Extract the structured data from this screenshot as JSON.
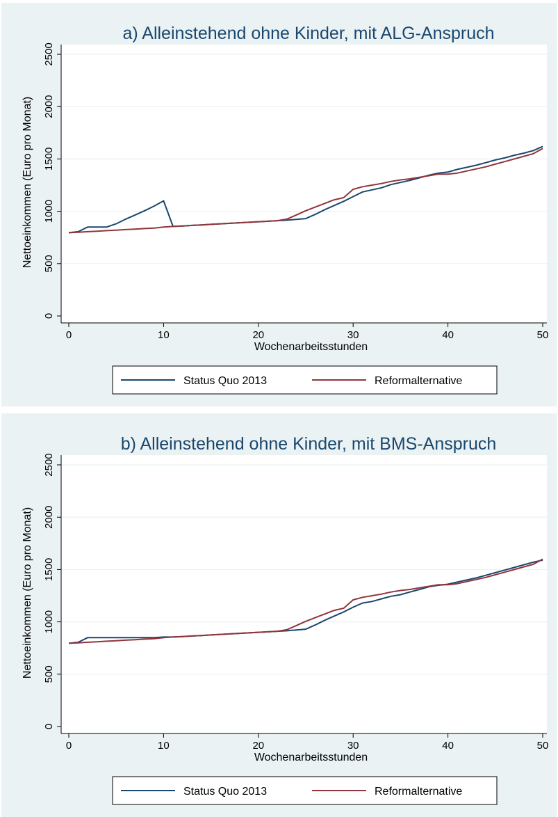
{
  "chart_data": [
    {
      "type": "line",
      "title": "a) Alleinstehend ohne Kinder, mit ALG-Anspruch",
      "xlabel": "Wochenarbeitsstunden",
      "ylabel": "Nettoeinkommen (Euro pro Monat)",
      "xlim": [
        0,
        50
      ],
      "ylim": [
        0,
        2500
      ],
      "xticks": [
        0,
        10,
        20,
        30,
        40,
        50
      ],
      "yticks": [
        0,
        500,
        1000,
        1500,
        2000,
        2500
      ],
      "legend_position": "bottom",
      "series": [
        {
          "name": "Status Quo 2013",
          "color": "#1a476f",
          "x": [
            0,
            1,
            2,
            3,
            4,
            5,
            6,
            7,
            8,
            9,
            10,
            11,
            12,
            13,
            14,
            15,
            16,
            17,
            18,
            19,
            20,
            21,
            22,
            23,
            24,
            25,
            26,
            27,
            28,
            29,
            30,
            31,
            32,
            33,
            34,
            35,
            36,
            37,
            38,
            39,
            40,
            41,
            42,
            43,
            44,
            45,
            46,
            47,
            48,
            49,
            50
          ],
          "y": [
            795,
            805,
            850,
            850,
            850,
            880,
            925,
            965,
            1005,
            1050,
            1100,
            855,
            860,
            865,
            870,
            875,
            880,
            885,
            890,
            895,
            900,
            905,
            910,
            915,
            922,
            930,
            970,
            1015,
            1055,
            1095,
            1140,
            1185,
            1205,
            1225,
            1255,
            1275,
            1295,
            1320,
            1345,
            1365,
            1375,
            1400,
            1420,
            1440,
            1465,
            1490,
            1510,
            1535,
            1555,
            1580,
            1620
          ]
        },
        {
          "name": "Reformalternative",
          "color": "#90353b",
          "x": [
            0,
            1,
            2,
            3,
            4,
            5,
            6,
            7,
            8,
            9,
            10,
            11,
            12,
            13,
            14,
            15,
            16,
            17,
            18,
            19,
            20,
            21,
            22,
            23,
            24,
            25,
            26,
            27,
            28,
            29,
            30,
            31,
            32,
            33,
            34,
            35,
            36,
            37,
            38,
            39,
            40,
            41,
            42,
            43,
            44,
            45,
            46,
            47,
            48,
            49,
            50
          ],
          "y": [
            795,
            800,
            805,
            810,
            815,
            820,
            825,
            830,
            835,
            840,
            850,
            855,
            860,
            865,
            870,
            875,
            880,
            885,
            890,
            895,
            900,
            905,
            910,
            925,
            965,
            1005,
            1040,
            1075,
            1110,
            1130,
            1210,
            1235,
            1250,
            1265,
            1285,
            1300,
            1310,
            1325,
            1340,
            1355,
            1355,
            1365,
            1385,
            1405,
            1425,
            1450,
            1475,
            1500,
            1525,
            1550,
            1600
          ]
        }
      ]
    },
    {
      "type": "line",
      "title": "b) Alleinstehend ohne Kinder, mit BMS-Anspruch",
      "xlabel": "Wochenarbeitsstunden",
      "ylabel": "Nettoeinkommen (Euro pro Monat)",
      "xlim": [
        0,
        50
      ],
      "ylim": [
        0,
        2500
      ],
      "xticks": [
        0,
        10,
        20,
        30,
        40,
        50
      ],
      "yticks": [
        0,
        500,
        1000,
        1500,
        2000,
        2500
      ],
      "legend_position": "bottom",
      "series": [
        {
          "name": "Status Quo 2013",
          "color": "#1a476f",
          "x": [
            0,
            1,
            2,
            3,
            4,
            5,
            6,
            7,
            8,
            9,
            10,
            11,
            12,
            13,
            14,
            15,
            16,
            17,
            18,
            19,
            20,
            21,
            22,
            23,
            24,
            25,
            26,
            27,
            28,
            29,
            30,
            31,
            32,
            33,
            34,
            35,
            36,
            37,
            38,
            39,
            40,
            41,
            42,
            43,
            44,
            45,
            46,
            47,
            48,
            49,
            50
          ],
          "y": [
            795,
            805,
            850,
            850,
            850,
            850,
            850,
            850,
            850,
            850,
            855,
            855,
            860,
            865,
            870,
            875,
            880,
            885,
            890,
            895,
            900,
            905,
            910,
            915,
            922,
            930,
            970,
            1015,
            1055,
            1095,
            1140,
            1180,
            1195,
            1220,
            1245,
            1260,
            1285,
            1310,
            1335,
            1350,
            1360,
            1380,
            1400,
            1420,
            1445,
            1470,
            1495,
            1520,
            1545,
            1570,
            1590
          ]
        },
        {
          "name": "Reformalternative",
          "color": "#90353b",
          "x": [
            0,
            1,
            2,
            3,
            4,
            5,
            6,
            7,
            8,
            9,
            10,
            11,
            12,
            13,
            14,
            15,
            16,
            17,
            18,
            19,
            20,
            21,
            22,
            23,
            24,
            25,
            26,
            27,
            28,
            29,
            30,
            31,
            32,
            33,
            34,
            35,
            36,
            37,
            38,
            39,
            40,
            41,
            42,
            43,
            44,
            45,
            46,
            47,
            48,
            49,
            50
          ],
          "y": [
            795,
            800,
            805,
            810,
            815,
            820,
            825,
            830,
            835,
            840,
            850,
            855,
            860,
            865,
            870,
            875,
            880,
            885,
            890,
            895,
            900,
            905,
            910,
            925,
            965,
            1005,
            1040,
            1075,
            1110,
            1130,
            1210,
            1235,
            1250,
            1265,
            1285,
            1300,
            1310,
            1325,
            1340,
            1355,
            1355,
            1365,
            1385,
            1405,
            1425,
            1450,
            1475,
            1500,
            1525,
            1550,
            1600
          ]
        }
      ]
    }
  ]
}
